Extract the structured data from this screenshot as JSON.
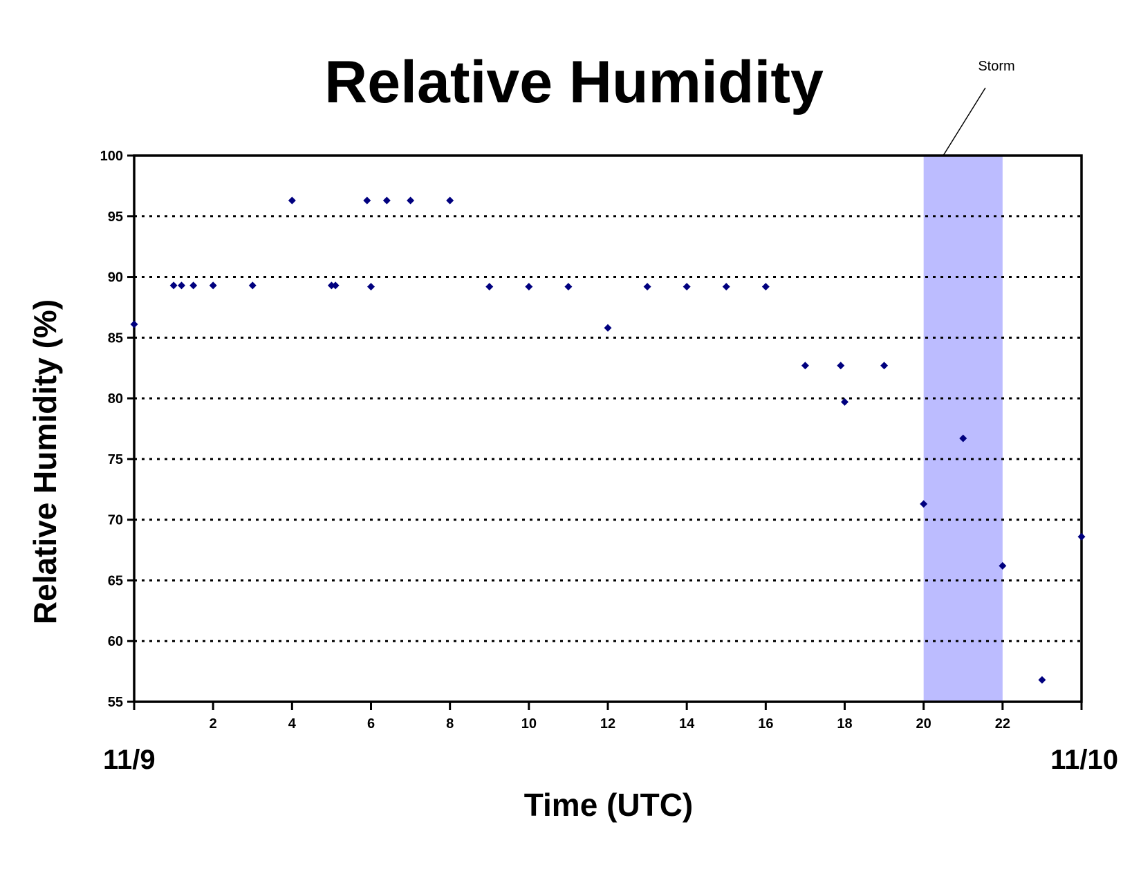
{
  "chart_data": {
    "type": "scatter",
    "title": "Relative Humidity",
    "xlabel": "Time (UTC)",
    "ylabel": "Relative Humidity (%)",
    "xlim": [
      0,
      24
    ],
    "ylim": [
      55,
      100
    ],
    "x_ticks": [
      2,
      4,
      6,
      8,
      10,
      12,
      14,
      16,
      18,
      20,
      22
    ],
    "y_ticks": [
      55,
      60,
      65,
      70,
      75,
      80,
      85,
      90,
      95,
      100
    ],
    "date_labels": [
      {
        "x": 0,
        "text": "11/9"
      },
      {
        "x": 24,
        "text": "11/10"
      }
    ],
    "grid": "horizontal dotted",
    "marker_color": "#00007f",
    "shaded_region": {
      "x_start": 20,
      "x_end": 22,
      "label": "Storm",
      "color": "#bcbcff"
    },
    "series": [
      {
        "points": [
          [
            0,
            86.1
          ],
          [
            1.0,
            89.3
          ],
          [
            1.2,
            89.3
          ],
          [
            1.5,
            89.3
          ],
          [
            2,
            89.3
          ],
          [
            3,
            89.3
          ],
          [
            4,
            96.3
          ],
          [
            5.0,
            89.3
          ],
          [
            5.1,
            89.3
          ],
          [
            5.9,
            96.3
          ],
          [
            6.0,
            89.2
          ],
          [
            6.4,
            96.3
          ],
          [
            7,
            96.3
          ],
          [
            8,
            96.3
          ],
          [
            9,
            89.2
          ],
          [
            10,
            89.2
          ],
          [
            11,
            89.2
          ],
          [
            12,
            85.8
          ],
          [
            13,
            89.2
          ],
          [
            14,
            89.2
          ],
          [
            15,
            89.2
          ],
          [
            16,
            89.2
          ],
          [
            17,
            82.7
          ],
          [
            17.9,
            82.7
          ],
          [
            18.0,
            79.7
          ],
          [
            19,
            82.7
          ],
          [
            20,
            71.3
          ],
          [
            21,
            76.7
          ],
          [
            22,
            66.2
          ],
          [
            23,
            56.8
          ],
          [
            24,
            68.6
          ]
        ]
      }
    ]
  }
}
